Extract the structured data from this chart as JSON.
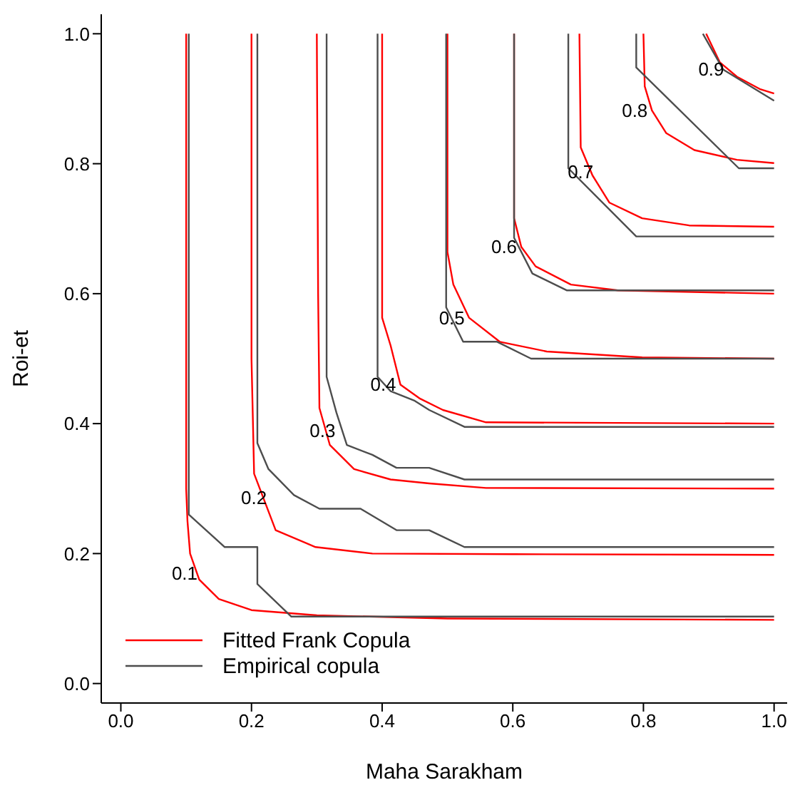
{
  "chart_data": {
    "type": "line",
    "xlabel": "Maha Sarakham",
    "ylabel": "Roi-et",
    "xlim": [
      -0.03,
      1.02
    ],
    "ylim": [
      -0.03,
      1.03
    ],
    "xticks": [
      {
        "value": 0,
        "label": "0.0"
      },
      {
        "value": 0.2,
        "label": "0.2"
      },
      {
        "value": 0.4,
        "label": "0.4"
      },
      {
        "value": 0.6,
        "label": "0.6"
      },
      {
        "value": 0.8,
        "label": "0.8"
      },
      {
        "value": 1,
        "label": "1.0"
      }
    ],
    "yticks": [
      {
        "value": 0,
        "label": "0.0"
      },
      {
        "value": 0.2,
        "label": "0.2"
      },
      {
        "value": 0.4,
        "label": "0.4"
      },
      {
        "value": 0.6,
        "label": "0.6"
      },
      {
        "value": 0.8,
        "label": "0.8"
      },
      {
        "value": 1,
        "label": "1.0"
      }
    ],
    "grid": false,
    "legend": "bottom left",
    "marker": "none",
    "line_style": "solid",
    "series": [
      {
        "name": "Fitted Frank Copula",
        "color": "#ff0000",
        "x": [
          0.1,
          0.1,
          0.1,
          0.102,
          0.106,
          0.12,
          0.15,
          0.2,
          0.3,
          0.5,
          1.0
        ],
        "values": [
          1.0,
          0.5,
          0.3,
          0.25,
          0.2,
          0.16,
          0.13,
          0.113,
          0.105,
          0.1,
          0.098
        ]
      },
      {
        "color": "#ff0000",
        "x": [
          0.2,
          0.2,
          0.204,
          0.237,
          0.298,
          0.385,
          0.6,
          1.0
        ],
        "values": [
          1.0,
          0.5,
          0.323,
          0.236,
          0.21,
          0.2,
          0.199,
          0.198
        ]
      },
      {
        "color": "#ff0000",
        "x": [
          0.3,
          0.302,
          0.304,
          0.32,
          0.357,
          0.413,
          0.472,
          0.559,
          1.0
        ],
        "values": [
          1.0,
          0.6,
          0.424,
          0.367,
          0.33,
          0.314,
          0.308,
          0.301,
          0.3
        ]
      },
      {
        "color": "#ff0000",
        "x": [
          0.4,
          0.4,
          0.413,
          0.428,
          0.457,
          0.493,
          0.559,
          1.0
        ],
        "values": [
          1.0,
          0.563,
          0.52,
          0.46,
          0.439,
          0.421,
          0.402,
          0.4
        ]
      },
      {
        "color": "#ff0000",
        "x": [
          0.5,
          0.5,
          0.5,
          0.509,
          0.533,
          0.58,
          0.652,
          0.798,
          1.0
        ],
        "values": [
          1.0,
          0.738,
          0.664,
          0.614,
          0.563,
          0.526,
          0.511,
          0.502,
          0.5
        ]
      },
      {
        "color": "#ff0000",
        "x": [
          0.602,
          0.602,
          0.613,
          0.635,
          0.689,
          0.761,
          1.0
        ],
        "values": [
          1.0,
          0.716,
          0.672,
          0.642,
          0.614,
          0.605,
          0.6
        ]
      },
      {
        "color": "#ff0000",
        "x": [
          0.702,
          0.704,
          0.722,
          0.748,
          0.798,
          0.87,
          1.0
        ],
        "values": [
          1.0,
          0.825,
          0.782,
          0.74,
          0.716,
          0.705,
          0.703
        ]
      },
      {
        "color": "#ff0000",
        "x": [
          0.8,
          0.802,
          0.813,
          0.835,
          0.878,
          0.943,
          1.0
        ],
        "values": [
          1.0,
          0.919,
          0.882,
          0.847,
          0.821,
          0.806,
          0.801
        ]
      },
      {
        "color": "#ff0000",
        "x": [
          0.896,
          0.917,
          0.943,
          0.978,
          1.0
        ],
        "values": [
          1.0,
          0.956,
          0.934,
          0.915,
          0.908
        ]
      },
      {
        "name": "Empirical copula",
        "color": "#4d4d4d",
        "x": [
          0.104,
          0.104,
          0.159,
          0.209,
          0.209,
          0.261,
          1.0
        ],
        "values": [
          1.0,
          0.26,
          0.21,
          0.21,
          0.153,
          0.103,
          0.103
        ]
      },
      {
        "color": "#4d4d4d",
        "x": [
          0.209,
          0.209,
          0.226,
          0.265,
          0.304,
          0.367,
          0.422,
          0.472,
          0.526,
          1.0
        ],
        "values": [
          1.0,
          0.37,
          0.33,
          0.29,
          0.269,
          0.269,
          0.236,
          0.236,
          0.21,
          0.21
        ]
      },
      {
        "color": "#4d4d4d",
        "x": [
          0.315,
          0.315,
          0.33,
          0.346,
          0.385,
          0.422,
          0.472,
          0.526,
          1.0
        ],
        "values": [
          1.0,
          0.472,
          0.417,
          0.367,
          0.352,
          0.332,
          0.332,
          0.314,
          0.314
        ]
      },
      {
        "color": "#4d4d4d",
        "x": [
          0.393,
          0.393,
          0.413,
          0.45,
          0.472,
          0.526,
          1.0
        ],
        "values": [
          1.0,
          0.472,
          0.45,
          0.435,
          0.421,
          0.395,
          0.395
        ]
      },
      {
        "color": "#4d4d4d",
        "x": [
          0.498,
          0.498,
          0.524,
          0.576,
          0.628,
          1.0
        ],
        "values": [
          1.0,
          0.579,
          0.526,
          0.526,
          0.5,
          0.5
        ]
      },
      {
        "color": "#4d4d4d",
        "x": [
          0.602,
          0.602,
          0.63,
          0.683,
          1.0
        ],
        "values": [
          1.0,
          0.686,
          0.631,
          0.605,
          0.605
        ]
      },
      {
        "color": "#4d4d4d",
        "x": [
          0.685,
          0.685,
          0.789,
          1.0
        ],
        "values": [
          1.0,
          0.793,
          0.688,
          0.688
        ]
      },
      {
        "color": "#4d4d4d",
        "x": [
          0.789,
          0.789,
          0.946,
          1.0
        ],
        "values": [
          1.0,
          0.948,
          0.793,
          0.793
        ]
      },
      {
        "color": "#4d4d4d",
        "x": [
          0.891,
          0.922,
          1.0
        ],
        "values": [
          1.0,
          0.945,
          0.897
        ]
      }
    ],
    "annotations": [
      {
        "text": "0.1",
        "x": 0.124,
        "y": 0.17
      },
      {
        "text": "0.2",
        "x": 0.23,
        "y": 0.286
      },
      {
        "text": "0.3",
        "x": 0.335,
        "y": 0.389
      },
      {
        "text": "0.4",
        "x": 0.428,
        "y": 0.46
      },
      {
        "text": "0.5",
        "x": 0.533,
        "y": 0.563
      },
      {
        "text": "0.6",
        "x": 0.613,
        "y": 0.672
      },
      {
        "text": "0.7",
        "x": 0.73,
        "y": 0.788
      },
      {
        "text": "0.8",
        "x": 0.813,
        "y": 0.882
      },
      {
        "text": "0.9",
        "x": 0.93,
        "y": 0.945
      }
    ]
  }
}
